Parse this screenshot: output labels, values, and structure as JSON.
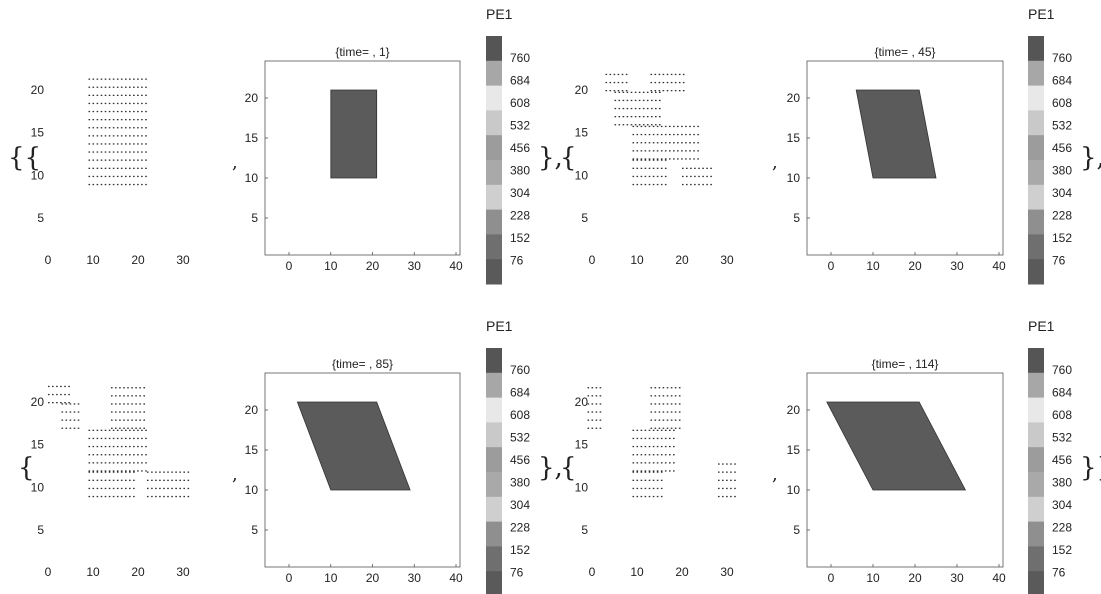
{
  "symbols": {
    "open_brace": "{",
    "close_brace": "}",
    "comma": ","
  },
  "colorbar": {
    "title": "PE1",
    "labels": [
      "760",
      "684",
      "608",
      "532",
      "456",
      "380",
      "304",
      "228",
      "152",
      "76"
    ],
    "colors": [
      "#555555",
      "#a7a7a7",
      "#e8e8e8",
      "#c9c9c9",
      "#9c9c9c",
      "#a9a9a9",
      "#cfcfcf",
      "#8f8f8f",
      "#6f6f6f",
      "#5a5a5a"
    ]
  },
  "chart_data": [
    {
      "type": "scatter",
      "x_ticks": [
        "0",
        "10",
        "20",
        "30"
      ],
      "y_ticks": [
        "5",
        "10",
        "15",
        "20"
      ],
      "xlim": [
        -2,
        36
      ],
      "ylim": [
        1,
        23
      ],
      "blocks": [
        {
          "x": [
            9,
            22
          ],
          "y": [
            9,
            21.5
          ]
        }
      ]
    },
    {
      "type": "heatmap",
      "title": "{time= , 1}",
      "x_ticks": [
        "0",
        "10",
        "20",
        "30",
        "40"
      ],
      "y_ticks": [
        "5",
        "10",
        "15",
        "20"
      ],
      "xlim": [
        -5,
        41
      ],
      "ylim": [
        1,
        24
      ],
      "region": [
        [
          10,
          10
        ],
        [
          21,
          10
        ],
        [
          21,
          21
        ],
        [
          10,
          21
        ]
      ],
      "fill": "#5b5b5b"
    },
    {
      "type": "scatter",
      "x_ticks": [
        "0",
        "10",
        "20",
        "30"
      ],
      "y_ticks": [
        "5",
        "10",
        "15",
        "20"
      ],
      "xlim": [
        -2,
        36
      ],
      "ylim": [
        1,
        23
      ],
      "blocks": [
        {
          "x": [
            3,
            8
          ],
          "y": [
            20,
            22
          ]
        },
        {
          "x": [
            5,
            15
          ],
          "y": [
            16,
            20
          ]
        },
        {
          "x": [
            13,
            21
          ],
          "y": [
            20,
            22
          ]
        },
        {
          "x": [
            9,
            24
          ],
          "y": [
            12,
            16
          ]
        },
        {
          "x": [
            9,
            17
          ],
          "y": [
            9,
            12
          ]
        },
        {
          "x": [
            20,
            27
          ],
          "y": [
            9,
            11
          ]
        }
      ]
    },
    {
      "type": "heatmap",
      "title": "{time= , 45}",
      "x_ticks": [
        "0",
        "10",
        "20",
        "30",
        "40"
      ],
      "y_ticks": [
        "5",
        "10",
        "15",
        "20"
      ],
      "xlim": [
        -5,
        41
      ],
      "ylim": [
        1,
        24
      ],
      "region": [
        [
          10,
          10
        ],
        [
          25,
          10
        ],
        [
          21,
          21
        ],
        [
          6,
          21
        ]
      ],
      "fill": "#5b5b5b"
    },
    {
      "type": "scatter",
      "x_ticks": [
        "0",
        "10",
        "20",
        "30"
      ],
      "y_ticks": [
        "5",
        "10",
        "15",
        "20"
      ],
      "xlim": [
        -2,
        36
      ],
      "ylim": [
        1,
        23
      ],
      "blocks": [
        {
          "x": [
            0,
            5
          ],
          "y": [
            20,
            22
          ]
        },
        {
          "x": [
            3,
            7
          ],
          "y": [
            17,
            20
          ]
        },
        {
          "x": [
            14,
            22
          ],
          "y": [
            17,
            22
          ]
        },
        {
          "x": [
            9,
            22
          ],
          "y": [
            12,
            17
          ]
        },
        {
          "x": [
            9,
            19
          ],
          "y": [
            9,
            12
          ]
        },
        {
          "x": [
            22,
            31
          ],
          "y": [
            9,
            12
          ]
        }
      ]
    },
    {
      "type": "heatmap",
      "title": "{time= , 85}",
      "x_ticks": [
        "0",
        "10",
        "20",
        "30",
        "40"
      ],
      "y_ticks": [
        "5",
        "10",
        "15",
        "20"
      ],
      "xlim": [
        -5,
        41
      ],
      "ylim": [
        1,
        24
      ],
      "region": [
        [
          10,
          10
        ],
        [
          29,
          10
        ],
        [
          21,
          21
        ],
        [
          2,
          21
        ]
      ],
      "fill": "#5b5b5b"
    },
    {
      "type": "scatter",
      "x_ticks": [
        "0",
        "10",
        "20",
        "30"
      ],
      "y_ticks": [
        "5",
        "10",
        "15",
        "20"
      ],
      "xlim": [
        -2,
        36
      ],
      "ylim": [
        1,
        23
      ],
      "blocks": [
        {
          "x": [
            -1,
            2
          ],
          "y": [
            17,
            22
          ]
        },
        {
          "x": [
            13,
            20
          ],
          "y": [
            17,
            22
          ]
        },
        {
          "x": [
            9,
            18
          ],
          "y": [
            12,
            17
          ]
        },
        {
          "x": [
            9,
            16
          ],
          "y": [
            9,
            12
          ]
        },
        {
          "x": [
            28,
            32
          ],
          "y": [
            9,
            13
          ]
        }
      ]
    },
    {
      "type": "heatmap",
      "title": "{time= , 114}",
      "x_ticks": [
        "0",
        "10",
        "20",
        "30",
        "40"
      ],
      "y_ticks": [
        "5",
        "10",
        "15",
        "20"
      ],
      "xlim": [
        -5,
        41
      ],
      "ylim": [
        1,
        24
      ],
      "region": [
        [
          10,
          10
        ],
        [
          32,
          10
        ],
        [
          21,
          21
        ],
        [
          -1,
          21
        ]
      ],
      "fill": "#5b5b5b"
    }
  ]
}
